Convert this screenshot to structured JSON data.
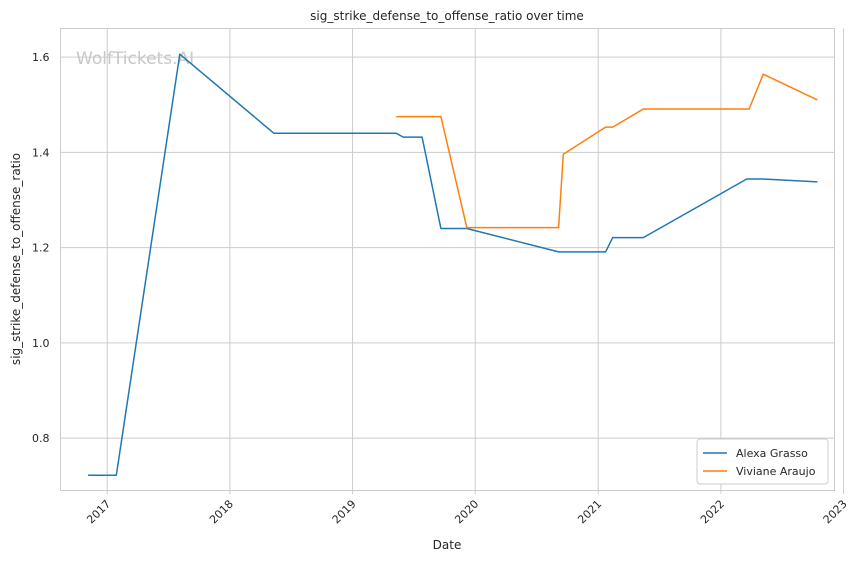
{
  "chart_data": {
    "type": "line",
    "title": "sig_strike_defense_to_offense_ratio over time",
    "xlabel": "Date",
    "ylabel": "sig_strike_defense_to_offense_ratio",
    "watermark": "WolfTickets.AI",
    "x_ticks": [
      "2017",
      "2018",
      "2019",
      "2020",
      "2021",
      "2022",
      "2023"
    ],
    "y_ticks": [
      "0.8",
      "1.0",
      "1.2",
      "1.4",
      "1.6"
    ],
    "xlim": [
      "2016-08-15",
      "2022-12-05"
    ],
    "ylim": [
      0.69,
      1.66
    ],
    "grid": true,
    "legend_position": "bottom-right",
    "series": [
      {
        "name": "Alexa Grasso",
        "color": "#1f77b4",
        "points": [
          [
            "2016-11-05",
            0.722
          ],
          [
            "2017-01-28",
            0.722
          ],
          [
            "2017-08-05",
            1.606
          ],
          [
            "2018-05-12",
            1.44
          ],
          [
            "2019-05-11",
            1.44
          ],
          [
            "2019-06-01",
            1.432
          ],
          [
            "2019-07-27",
            1.432
          ],
          [
            "2019-09-21",
            1.24
          ],
          [
            "2019-12-07",
            1.24
          ],
          [
            "2020-09-05",
            1.191
          ],
          [
            "2021-01-23",
            1.191
          ],
          [
            "2021-02-13",
            1.221
          ],
          [
            "2021-05-15",
            1.221
          ],
          [
            "2022-03-19",
            1.344
          ],
          [
            "2022-05-07",
            1.344
          ],
          [
            "2022-10-15",
            1.338
          ]
        ]
      },
      {
        "name": "Viviane Araujo",
        "color": "#ff7f0e",
        "points": [
          [
            "2019-05-11",
            1.475
          ],
          [
            "2019-09-21",
            1.475
          ],
          [
            "2019-12-07",
            1.242
          ],
          [
            "2020-09-05",
            1.242
          ],
          [
            "2020-09-19",
            1.396
          ],
          [
            "2021-01-23",
            1.453
          ],
          [
            "2021-02-13",
            1.453
          ],
          [
            "2021-05-15",
            1.491
          ],
          [
            "2022-03-26",
            1.491
          ],
          [
            "2022-05-07",
            1.564
          ],
          [
            "2022-10-15",
            1.51
          ]
        ]
      }
    ]
  }
}
